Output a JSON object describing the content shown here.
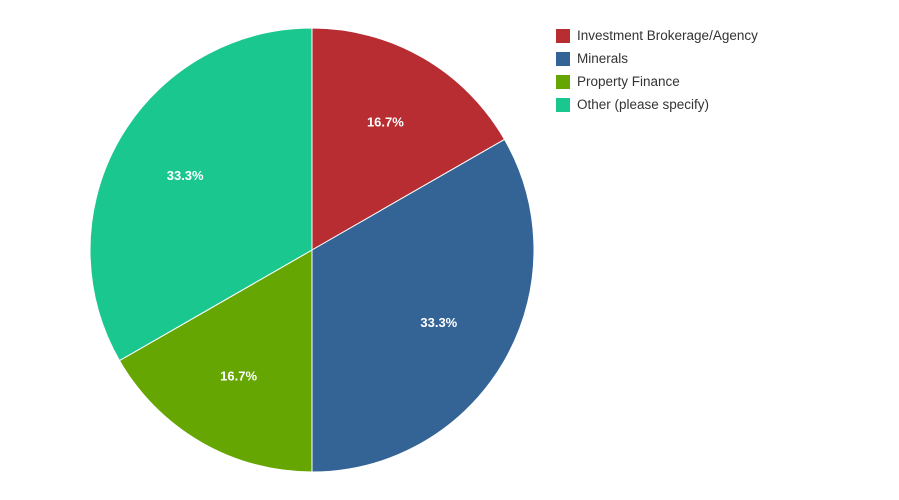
{
  "chart_data": {
    "type": "pie",
    "title": "",
    "legend_position": "top-right",
    "slices": [
      {
        "label": "Investment Brokerage/Agency",
        "value": 16.7,
        "display": "16.7%",
        "color": "#b72d32"
      },
      {
        "label": "Minerals",
        "value": 33.3,
        "display": "33.3%",
        "color": "#336495"
      },
      {
        "label": "Property Finance",
        "value": 16.7,
        "display": "16.7%",
        "color": "#65a603"
      },
      {
        "label": "Other (please specify)",
        "value": 33.3,
        "display": "33.3%",
        "color": "#1ac78e"
      }
    ]
  }
}
